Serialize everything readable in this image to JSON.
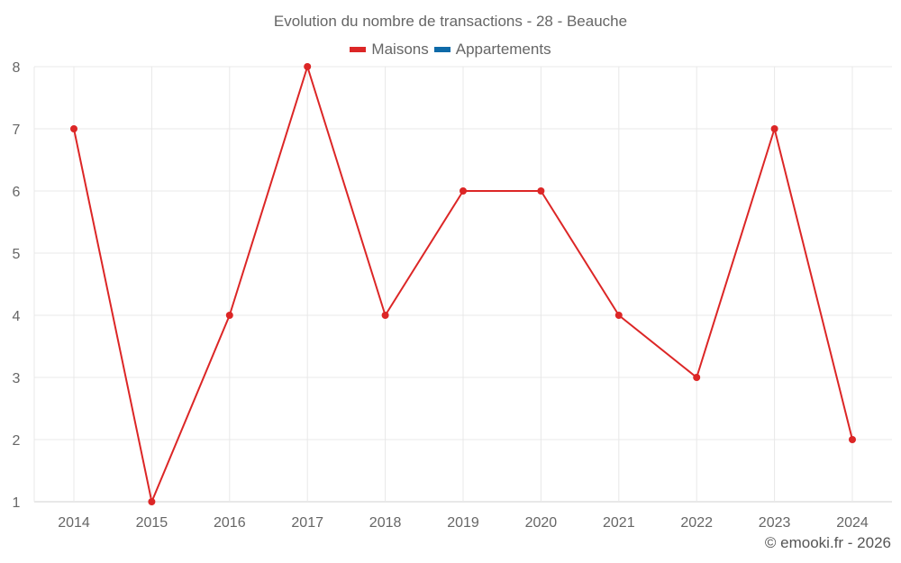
{
  "title": "Evolution du nombre de transactions - 28 - Beauche",
  "legend": [
    {
      "label": "Maisons",
      "color": "#dc2626"
    },
    {
      "label": "Appartements",
      "color": "#0e6aa8"
    }
  ],
  "footer": "© emooki.fr - 2026",
  "colors": {
    "grid": "#e8e8e8",
    "axis": "#d0d0d0",
    "maisons": "#dc2626",
    "appartements": "#0e6aa8"
  },
  "chart_data": {
    "type": "line",
    "title": "Evolution du nombre de transactions - 28 - Beauche",
    "categories": [
      "2014",
      "2015",
      "2016",
      "2017",
      "2018",
      "2019",
      "2020",
      "2021",
      "2022",
      "2023",
      "2024"
    ],
    "series": [
      {
        "name": "Maisons",
        "color": "#dc2626",
        "values": [
          7,
          1,
          4,
          8,
          4,
          6,
          6,
          4,
          3,
          7,
          2
        ]
      },
      {
        "name": "Appartements",
        "color": "#0e6aa8",
        "values": []
      }
    ],
    "y_ticks": [
      1,
      2,
      3,
      4,
      5,
      6,
      7,
      8
    ],
    "ylim": [
      1,
      8
    ],
    "xlabel": "",
    "ylabel": "",
    "grid": true,
    "legend_position": "top"
  }
}
